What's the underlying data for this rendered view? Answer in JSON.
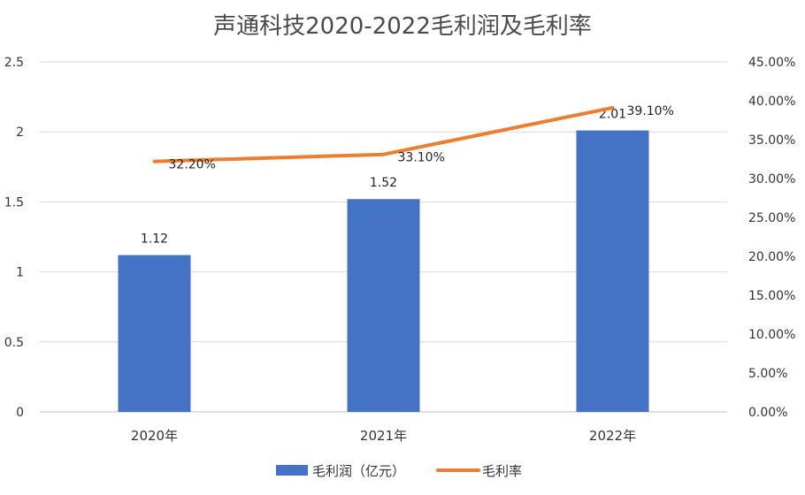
{
  "chart_data": {
    "type": "bar",
    "title": "声通科技2020-2022毛利润及毛利率",
    "categories": [
      "2020年",
      "2021年",
      "2022年"
    ],
    "series": [
      {
        "name": "毛利润（亿元）",
        "kind": "bar",
        "axis": "left",
        "color": "#4472C4",
        "values": [
          1.12,
          1.52,
          2.01
        ],
        "labels": [
          "1.12",
          "1.52",
          "2.01"
        ]
      },
      {
        "name": "毛利率",
        "kind": "line",
        "axis": "right",
        "color": "#ED7D31",
        "values": [
          0.322,
          0.331,
          0.391
        ],
        "labels": [
          "32.20%",
          "33.10%",
          "39.10%"
        ]
      }
    ],
    "y_left": {
      "ylim": [
        0,
        2.5
      ],
      "ticks": [
        0,
        0.5,
        1,
        1.5,
        2,
        2.5
      ],
      "tick_labels": [
        "0",
        "0.5",
        "1",
        "1.5",
        "2",
        "2.5"
      ]
    },
    "y_right": {
      "ylim": [
        0,
        0.45
      ],
      "ticks": [
        0,
        0.05,
        0.1,
        0.15,
        0.2,
        0.25,
        0.3,
        0.35,
        0.4,
        0.45
      ],
      "tick_labels": [
        "0.00%",
        "5.00%",
        "10.00%",
        "15.00%",
        "20.00%",
        "25.00%",
        "30.00%",
        "35.00%",
        "40.00%",
        "45.00%"
      ]
    },
    "grid": true,
    "legend": "bottom"
  }
}
